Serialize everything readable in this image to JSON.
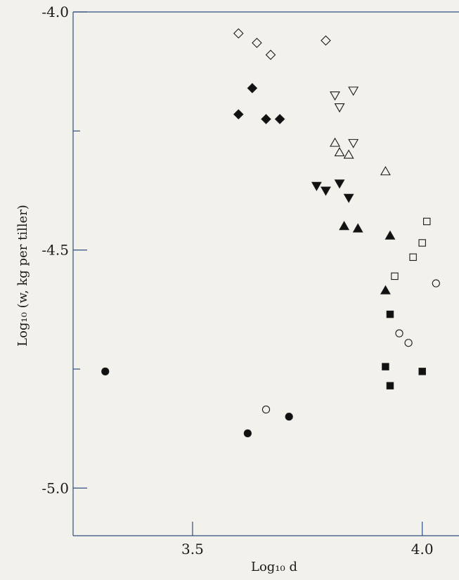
{
  "chart_data": {
    "type": "scatter",
    "title": "",
    "xlabel": "Log₁₀ d",
    "ylabel": "Log₁₀ (w, kg per tiller)",
    "xlim": [
      3.24,
      4.08
    ],
    "ylim": [
      -5.1,
      -4.0
    ],
    "xticks": [
      3.5,
      4.0
    ],
    "xtick_labels": [
      "3.5",
      "4.0"
    ],
    "yticks": [
      -4.0,
      -4.5,
      -5.0
    ],
    "ytick_labels": [
      "-4.0",
      "-4.5",
      "-5.0"
    ],
    "minor_yticks": [
      -4.25,
      -4.75
    ],
    "grid": false,
    "series": [
      {
        "marker": "diamond-open",
        "points": [
          [
            3.6,
            -4.045
          ],
          [
            3.64,
            -4.065
          ],
          [
            3.67,
            -4.09
          ],
          [
            3.79,
            -4.06
          ]
        ]
      },
      {
        "marker": "diamond-filled",
        "points": [
          [
            3.63,
            -4.16
          ],
          [
            3.6,
            -4.215
          ],
          [
            3.66,
            -4.225
          ],
          [
            3.69,
            -4.225
          ]
        ]
      },
      {
        "marker": "triangle-down-open",
        "points": [
          [
            3.81,
            -4.175
          ],
          [
            3.82,
            -4.2
          ],
          [
            3.85,
            -4.165
          ],
          [
            3.85,
            -4.275
          ]
        ]
      },
      {
        "marker": "triangle-up-open",
        "points": [
          [
            3.81,
            -4.275
          ],
          [
            3.82,
            -4.295
          ],
          [
            3.84,
            -4.3
          ],
          [
            3.92,
            -4.335
          ]
        ]
      },
      {
        "marker": "triangle-down-filled",
        "points": [
          [
            3.77,
            -4.365
          ],
          [
            3.79,
            -4.375
          ],
          [
            3.82,
            -4.36
          ],
          [
            3.84,
            -4.39
          ]
        ]
      },
      {
        "marker": "triangle-up-filled",
        "points": [
          [
            3.83,
            -4.45
          ],
          [
            3.86,
            -4.455
          ],
          [
            3.93,
            -4.47
          ],
          [
            3.92,
            -4.585
          ]
        ]
      },
      {
        "marker": "square-open",
        "points": [
          [
            4.01,
            -4.44
          ],
          [
            4.0,
            -4.485
          ],
          [
            3.98,
            -4.515
          ],
          [
            3.94,
            -4.555
          ]
        ]
      },
      {
        "marker": "circle-open",
        "points": [
          [
            4.03,
            -4.57
          ],
          [
            3.95,
            -4.675
          ],
          [
            3.97,
            -4.695
          ],
          [
            3.66,
            -4.835
          ]
        ]
      },
      {
        "marker": "square-filled",
        "points": [
          [
            3.93,
            -4.635
          ],
          [
            3.92,
            -4.745
          ],
          [
            4.0,
            -4.755
          ],
          [
            3.93,
            -4.785
          ]
        ]
      },
      {
        "marker": "circle-filled",
        "points": [
          [
            3.31,
            -4.755
          ],
          [
            3.71,
            -4.85
          ],
          [
            3.62,
            -4.885
          ]
        ]
      }
    ]
  }
}
